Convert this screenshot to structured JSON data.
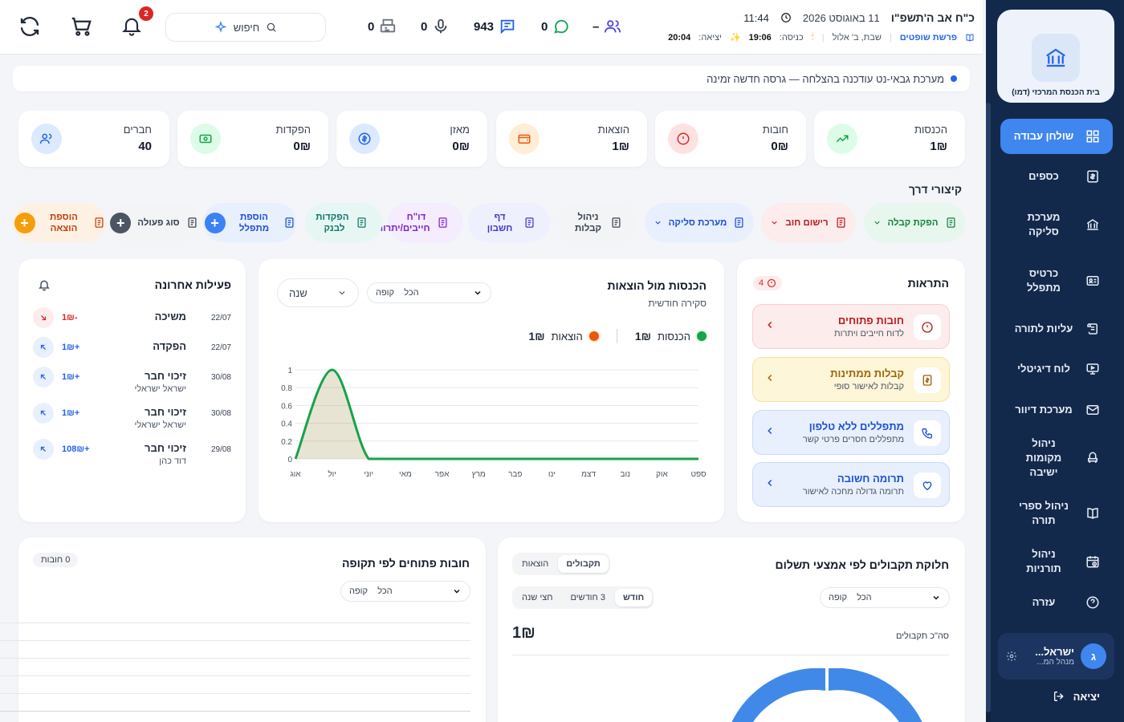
{
  "sidebar": {
    "org_name": "בית הכנסת המרכזי (דמו)",
    "items": [
      {
        "label": "שולחן עבודה",
        "icon": "dashboard-icon"
      },
      {
        "label": "כספים",
        "icon": "money-icon"
      },
      {
        "label": "מערכת סליקה",
        "icon": "bank-icon"
      },
      {
        "label": "כרטיס מתפלל",
        "icon": "id-card-icon"
      },
      {
        "label": "עליות לתורה",
        "icon": "scroll-icon"
      },
      {
        "label": "לוח דיגיטלי",
        "icon": "monitor-icon"
      },
      {
        "label": "מערכת דיוור",
        "icon": "mail-icon"
      },
      {
        "label": "ניהול מקומות ישיבה",
        "icon": "seat-icon"
      },
      {
        "label": "ניהול ספרי תורה",
        "icon": "book-icon"
      },
      {
        "label": "ניהול תורניות",
        "icon": "calendar-clock-icon"
      },
      {
        "label": "עזרה",
        "icon": "help-icon"
      }
    ],
    "user": {
      "initial": "ג",
      "name": "ישראל...",
      "role": "מנהל המ..."
    },
    "logout_label": "יציאה"
  },
  "header": {
    "hebrew_date": "כ\"ח אב ה'תשפ\"ו",
    "greg_date": "11 באוגוסט 2026",
    "time": "11:44",
    "parasha": "פרשת שופטים",
    "shabbat": "שבת, ב' אלול",
    "entry_label": "כניסה:",
    "entry_time": "19:06",
    "exit_label": "יציאה:",
    "exit_time": "20:04",
    "members_count": "–",
    "whatsapp_count": "0",
    "messages_count": "943",
    "voice_count": "0",
    "fax_count": "0",
    "search_label": "חיפוש",
    "notif_badge": "2"
  },
  "banner": {
    "text": "מערכת גבאי-נט עודכנה בהצלחה — גרסה חדשה זמינה"
  },
  "stats": [
    {
      "label": "הכנסות",
      "value": "1₪",
      "color": "#16a34a",
      "bg": "#dcfce7"
    },
    {
      "label": "חובות",
      "value": "0₪",
      "color": "#dc2626",
      "bg": "#fee2e2"
    },
    {
      "label": "הוצאות",
      "value": "1₪",
      "color": "#ea580c",
      "bg": "#ffedd5"
    },
    {
      "label": "מאזן",
      "value": "0₪",
      "color": "#2563eb",
      "bg": "#dbeafe"
    },
    {
      "label": "הפקדות",
      "value": "0₪",
      "color": "#16a34a",
      "bg": "#dcfce7"
    },
    {
      "label": "חברים",
      "value": "40",
      "color": "#2563eb",
      "bg": "#dbeafe"
    }
  ],
  "shortcuts": {
    "title": "קיצורי דרך",
    "items": [
      {
        "label": "הפקת קבלה",
        "color": "#15803d",
        "bg": "#e8f7ee"
      },
      {
        "label": "רישום חוב",
        "color": "#b91c1c",
        "bg": "#fdecec"
      },
      {
        "label": "מערכת סליקה",
        "color": "#1d4ed8",
        "bg": "#e8f0fd"
      },
      {
        "label": "ניהול קבלות",
        "color": "#374151",
        "bg": "#f3f4f6"
      },
      {
        "label": "דף חשבון",
        "color": "#4338ca",
        "bg": "#eef0fd"
      },
      {
        "label": "דו\"ח חייבים/יתרות",
        "color": "#7e22ce",
        "bg": "#f5ecfd"
      },
      {
        "label": "הפקדות לבנק",
        "color": "#0f766e",
        "bg": "#e6f7f3"
      },
      {
        "label": "הוספת מתפלל",
        "color": "#1d4ed8",
        "bg": "#e8f0fd"
      },
      {
        "label": "סוג פעולה",
        "color": "#374151",
        "bg": "#f3f4f6"
      },
      {
        "label": "הוספת הוצאה",
        "color": "#c2410c",
        "bg": "#fdf1e4"
      }
    ]
  },
  "alerts": {
    "title": "התראות",
    "count": "4",
    "items": [
      {
        "title": "חובות פתוחים",
        "sub": "לדוח חייבים ויתרות",
        "color": "#b91c1c",
        "bg": "#fdecec",
        "border": "#f8cfcf",
        "icon": "alert-circle-icon"
      },
      {
        "title": "קבלות ממתינות",
        "sub": "קבלות לאישור סופי",
        "color": "#a16207",
        "bg": "#fdf6d8",
        "border": "#f4e2a0",
        "icon": "receipt-icon"
      },
      {
        "title": "מתפללים ללא טלפון",
        "sub": "מתפללים חסרים פרטי קשר",
        "color": "#1d4ed8",
        "bg": "#e8f0fd",
        "border": "#c7dafa",
        "icon": "phone-icon"
      },
      {
        "title": "תרומה חשובה",
        "sub": "תרומה גדולה מחכה לאישור",
        "color": "#1d4ed8",
        "bg": "#e8f0fd",
        "border": "#c7dafa",
        "icon": "heart-icon"
      }
    ]
  },
  "income_chart": {
    "title": "הכנסות מול הוצאות",
    "subtitle": "סקירה חודשית",
    "cashbox_label": "קופה",
    "cashbox_value": "הכל",
    "period_value": "שנה",
    "legend_income": "הכנסות",
    "legend_income_value": "1₪",
    "legend_expense": "הוצאות",
    "legend_expense_value": "1₪"
  },
  "chart_data": {
    "type": "area",
    "categories": [
      "ספט",
      "אוק",
      "נוב",
      "דצמ",
      "ינו",
      "פבר",
      "מרץ",
      "אפר",
      "מאי",
      "יוני",
      "יול",
      "אוג"
    ],
    "series": [
      {
        "name": "הכנסות",
        "values": [
          0,
          0,
          0,
          0,
          0,
          0,
          0,
          0,
          0,
          0,
          1,
          0
        ],
        "color": "#16a34a"
      },
      {
        "name": "הוצאות",
        "values": [
          0,
          0,
          0,
          0,
          0,
          0,
          0,
          0,
          0,
          0,
          1,
          0
        ],
        "color": "#ea580c"
      }
    ],
    "yticks": [
      "0",
      "0.2",
      "0.4",
      "0.6",
      "0.8",
      "1"
    ],
    "ylim": [
      0,
      1
    ]
  },
  "activity": {
    "title": "פעילות אחרונה",
    "items": [
      {
        "date": "22/07",
        "name": "משיכה",
        "sub": "",
        "amount": "-1₪",
        "type": "out"
      },
      {
        "date": "22/07",
        "name": "הפקדה",
        "sub": "",
        "amount": "+1₪",
        "type": "in"
      },
      {
        "date": "30/08",
        "name": "זיכוי חבר",
        "sub": "ישראל ישראלי",
        "amount": "+1₪",
        "type": "in"
      },
      {
        "date": "30/08",
        "name": "זיכוי חבר",
        "sub": "ישראל ישראלי",
        "amount": "+1₪",
        "type": "in"
      },
      {
        "date": "29/08",
        "name": "זיכוי חבר",
        "sub": "דוד כהן",
        "amount": "+108₪",
        "type": "in"
      }
    ]
  },
  "receipts_panel": {
    "title": "חלוקת תקבולים לפי אמצעי תשלום",
    "tabs": [
      "תקבולים",
      "הוצאות"
    ],
    "periods": [
      "חודש",
      "3 חודשים",
      "חצי שנה"
    ],
    "cashbox_label": "קופה",
    "cashbox_value": "הכל",
    "total_label": "סה\"כ תקבולים",
    "total_value": "1₪"
  },
  "debts_panel": {
    "title": "חובות פתוחים לפי תקופה",
    "count": "0 חובות",
    "cashbox_label": "קופה",
    "cashbox_value": "הכל"
  }
}
